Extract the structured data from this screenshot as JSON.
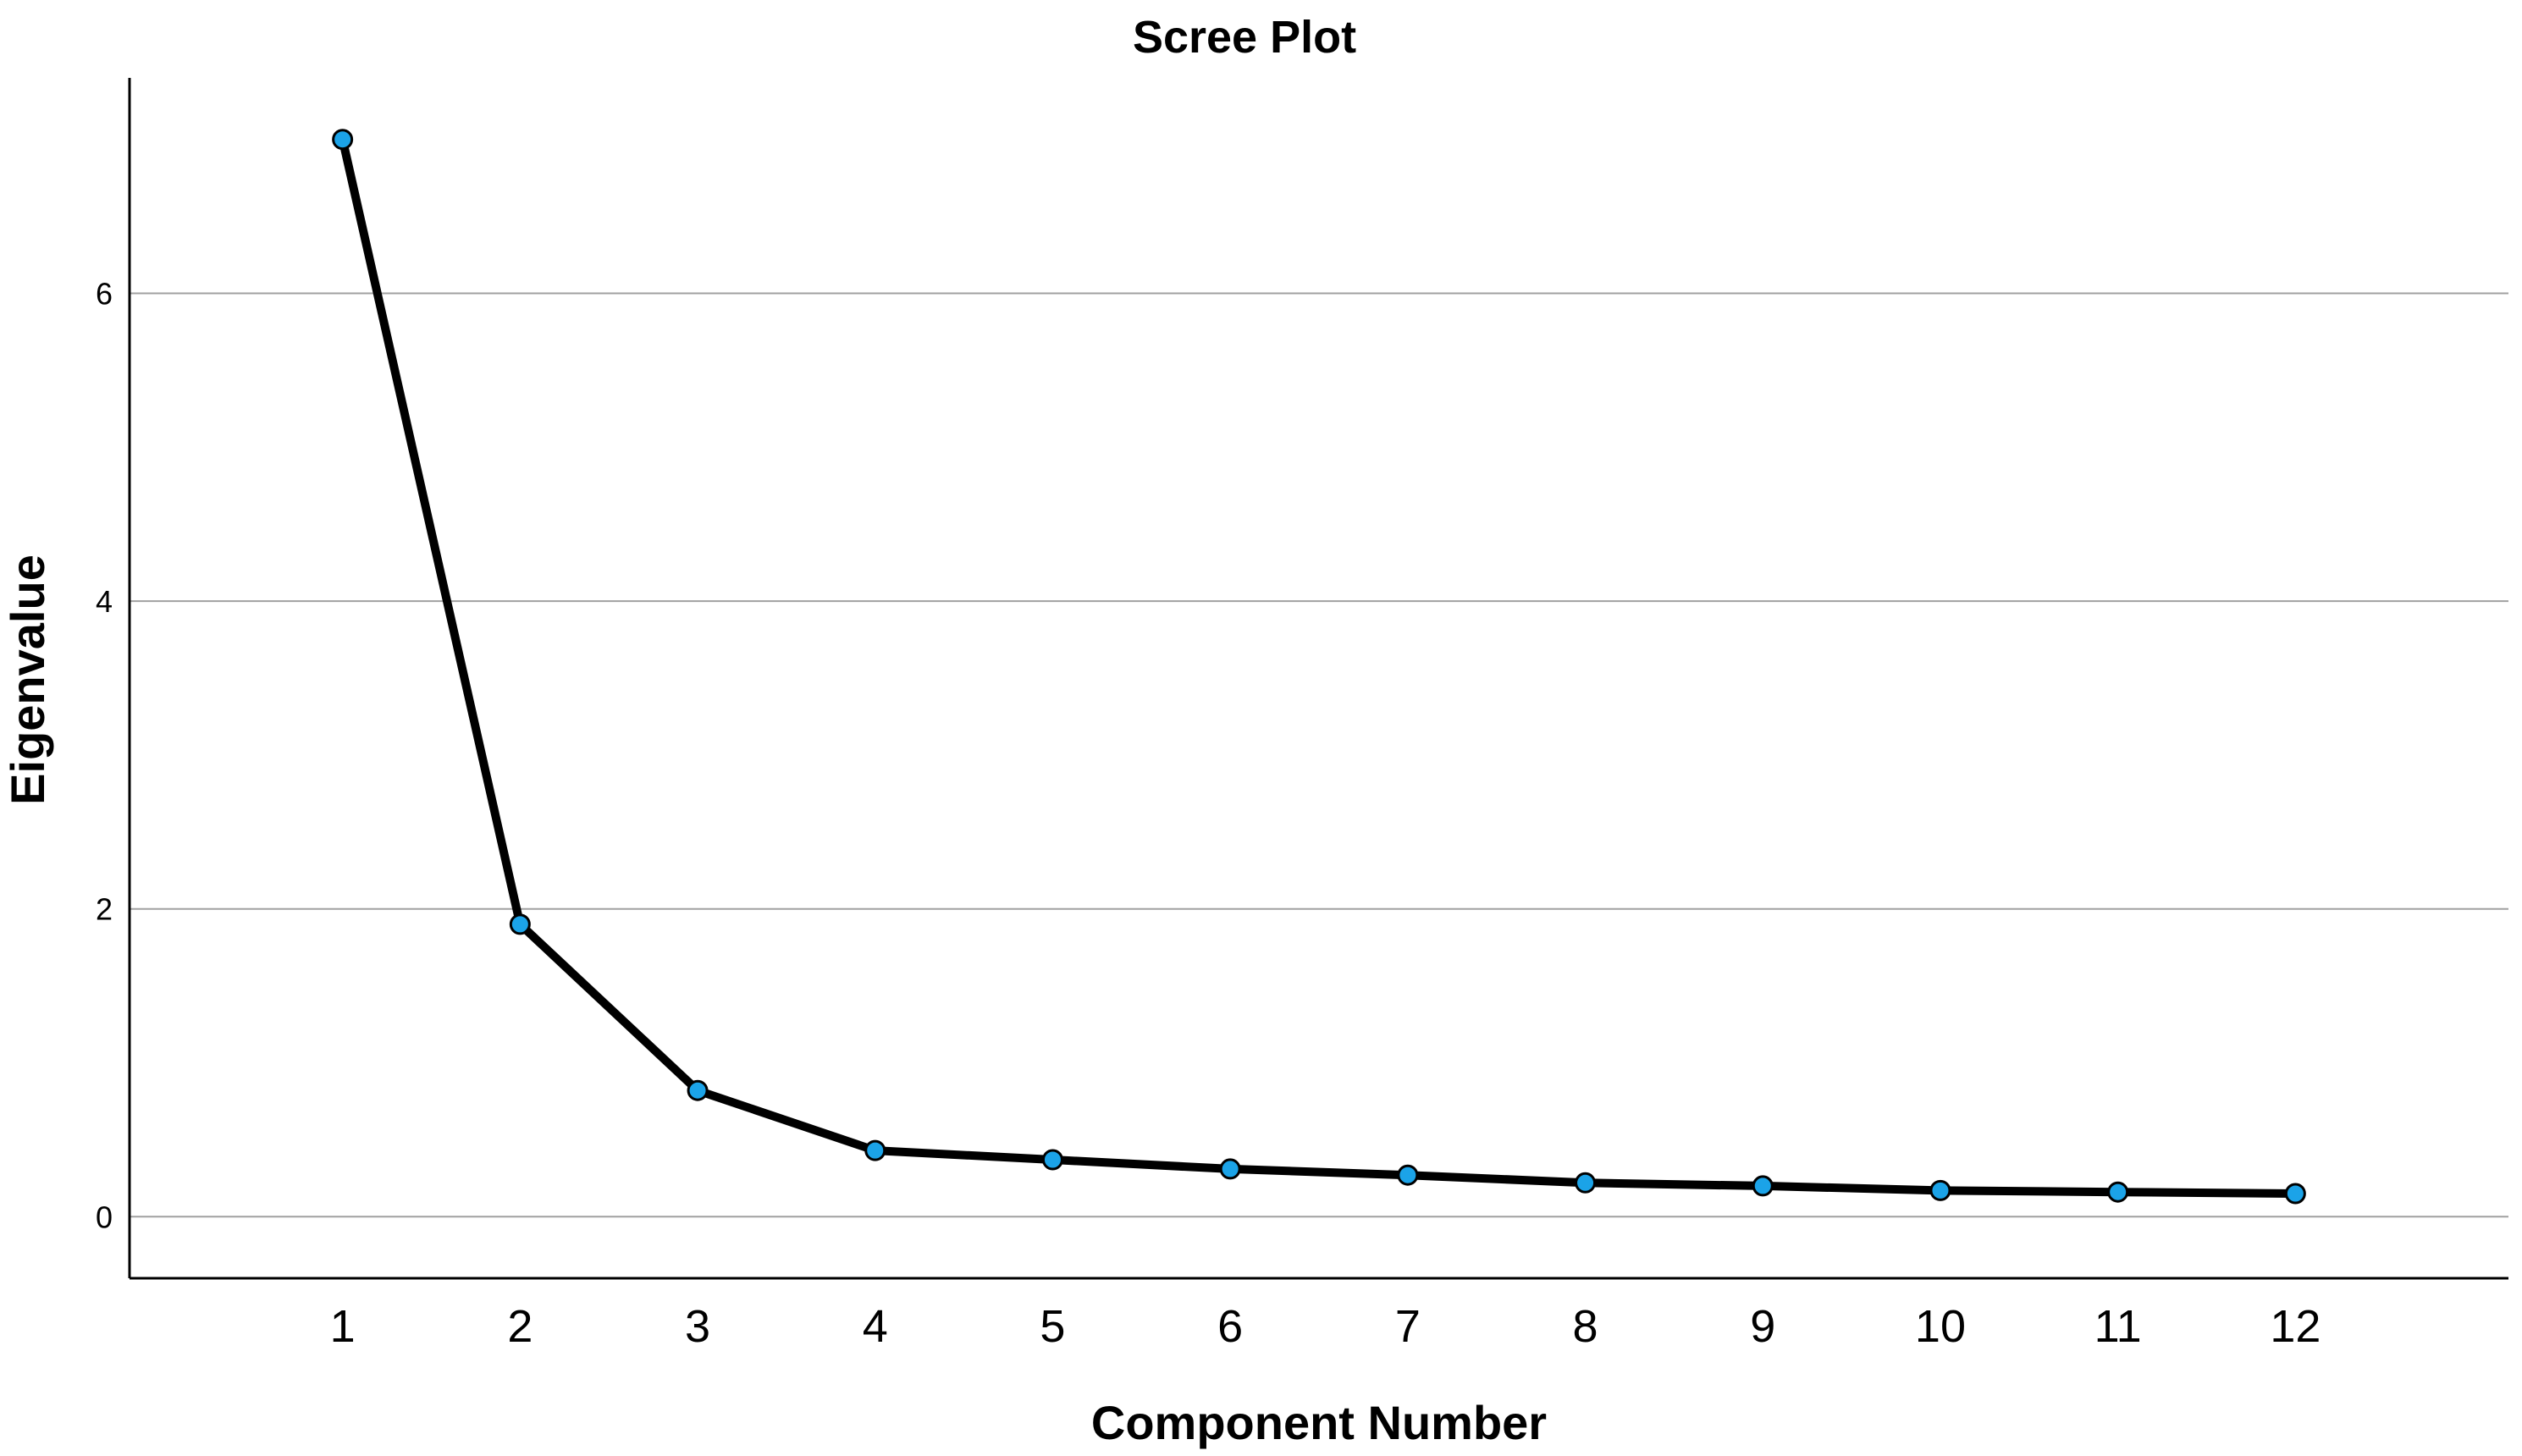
{
  "chart_data": {
    "type": "line",
    "title": "Scree Plot",
    "xlabel": "Component Number",
    "ylabel": "Eigenvalue",
    "x": [
      1,
      2,
      3,
      4,
      5,
      6,
      7,
      8,
      9,
      10,
      11,
      12
    ],
    "x_tick_labels": [
      "1",
      "2",
      "3",
      "4",
      "5",
      "6",
      "7",
      "8",
      "9",
      "10",
      "11",
      "12"
    ],
    "y_ticks": [
      0,
      2,
      4,
      6
    ],
    "y_tick_labels": [
      "0",
      "2",
      "4",
      "6"
    ],
    "ylim": [
      -0.4,
      7.4
    ],
    "xlim": [
      -0.2,
      13.2
    ],
    "grid": "horizontal",
    "line_color": "#000000",
    "marker_color": "#1ba3e8",
    "series": [
      {
        "values": [
          7.0,
          1.9,
          0.82,
          0.43,
          0.37,
          0.31,
          0.27,
          0.22,
          0.2,
          0.17,
          0.16,
          0.15
        ]
      }
    ]
  }
}
